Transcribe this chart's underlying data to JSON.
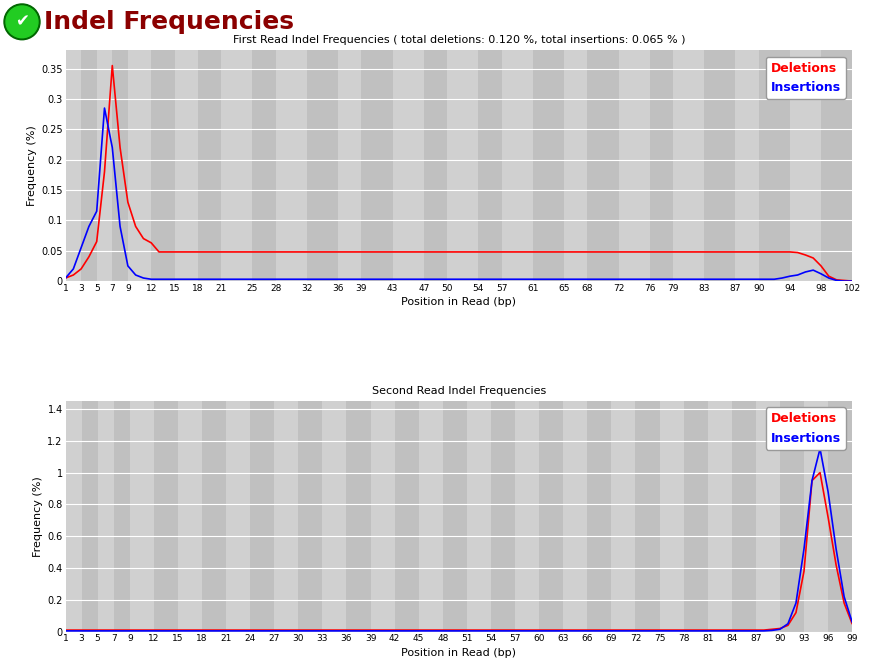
{
  "title": "Indel Frequencies",
  "title_color": "#8B0000",
  "plot1_title": "First Read Indel Frequencies ( total deletions: 0.120 %, total insertions: 0.065 % )",
  "plot2_title": "Second Read Indel Frequencies",
  "xlabel": "Position in Read (bp)",
  "ylabel": "Frequency (%)",
  "deletion_color": "#FF0000",
  "insertion_color": "#0000FF",
  "plot_bg": "#D3D3D3",
  "fig_bg": "#FFFFFF",
  "grid_color": "#FFFFFF",
  "alt_col_color": "#C8C8C8",
  "plot1_xtick_labels": [
    "1",
    "3",
    "5",
    "7",
    "9",
    "12",
    "15",
    "18",
    "21",
    "25",
    "28",
    "32",
    "36",
    "39",
    "43",
    "47",
    "50",
    "54",
    "57",
    "61",
    "65",
    "68",
    "72",
    "76",
    "79",
    "83",
    "87",
    "90",
    "94",
    "98",
    "102"
  ],
  "plot1_xtick_pos": [
    1,
    3,
    5,
    7,
    9,
    12,
    15,
    18,
    21,
    25,
    28,
    32,
    36,
    39,
    43,
    47,
    50,
    54,
    57,
    61,
    65,
    68,
    72,
    76,
    79,
    83,
    87,
    90,
    94,
    98,
    102
  ],
  "plot1_ylim": [
    0,
    0.38
  ],
  "plot1_yticks": [
    0,
    0.05,
    0.1,
    0.15,
    0.2,
    0.25,
    0.3,
    0.35
  ],
  "plot2_xtick_labels": [
    "1",
    "3",
    "5",
    "7",
    "9",
    "12",
    "15",
    "18",
    "21",
    "24",
    "27",
    "30",
    "33",
    "36",
    "39",
    "42",
    "45",
    "48",
    "51",
    "54",
    "57",
    "60",
    "63",
    "66",
    "69",
    "72",
    "75",
    "78",
    "81",
    "84",
    "87",
    "90",
    "93",
    "96",
    "99"
  ],
  "plot2_xtick_pos": [
    1,
    3,
    5,
    7,
    9,
    12,
    15,
    18,
    21,
    24,
    27,
    30,
    33,
    36,
    39,
    42,
    45,
    48,
    51,
    54,
    57,
    60,
    63,
    66,
    69,
    72,
    75,
    78,
    81,
    84,
    87,
    90,
    93,
    96,
    99
  ],
  "plot2_ylim": [
    0,
    1.45
  ],
  "plot2_yticks": [
    0,
    0.2,
    0.4,
    0.6,
    0.8,
    1.0,
    1.2,
    1.4
  ]
}
